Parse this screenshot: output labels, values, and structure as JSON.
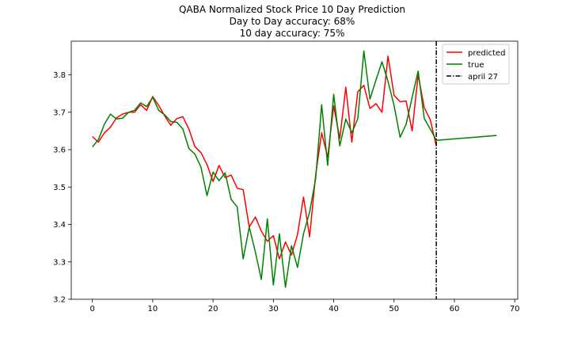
{
  "chart_data": {
    "type": "line",
    "title_lines": [
      "QABA Normalized Stock Price 10 Day Prediction",
      "Day to Day accuracy: 68%",
      "10 day accuracy: 75%"
    ],
    "xlabel": "",
    "ylabel": "",
    "xlim": [
      -3.5,
      70.5
    ],
    "ylim": [
      3.2,
      3.89
    ],
    "xticks": [
      0,
      10,
      20,
      30,
      40,
      50,
      60,
      70
    ],
    "yticks": [
      3.2,
      3.3,
      3.4,
      3.5,
      3.6,
      3.7,
      3.8
    ],
    "grid": false,
    "legend_position": "top-right",
    "series": [
      {
        "name": "predicted",
        "color": "#ff0000",
        "style": "solid",
        "x": [
          0,
          1,
          2,
          3,
          4,
          5,
          6,
          7,
          8,
          9,
          10,
          11,
          12,
          13,
          14,
          15,
          16,
          17,
          18,
          19,
          20,
          21,
          22,
          23,
          24,
          25,
          26,
          27,
          28,
          29,
          30,
          31,
          32,
          33,
          34,
          35,
          36,
          37,
          38,
          39,
          40,
          41,
          42,
          43,
          44,
          45,
          46,
          47,
          48,
          49,
          50,
          51,
          52,
          53,
          54,
          55,
          56,
          57
        ],
        "values": [
          3.635,
          3.62,
          3.645,
          3.66,
          3.685,
          3.695,
          3.7,
          3.7,
          3.72,
          3.705,
          3.742,
          3.718,
          3.69,
          3.665,
          3.683,
          3.688,
          3.655,
          3.608,
          3.592,
          3.56,
          3.515,
          3.558,
          3.525,
          3.532,
          3.497,
          3.493,
          3.393,
          3.42,
          3.382,
          3.355,
          3.37,
          3.308,
          3.353,
          3.318,
          3.373,
          3.473,
          3.367,
          3.532,
          3.645,
          3.58,
          3.717,
          3.63,
          3.767,
          3.62,
          3.755,
          3.772,
          3.71,
          3.723,
          3.7,
          3.85,
          3.745,
          3.728,
          3.73,
          3.65,
          3.8,
          3.712,
          3.68,
          3.61
        ]
      },
      {
        "name": "true",
        "color": "#008000",
        "style": "solid",
        "x": [
          0,
          1,
          2,
          3,
          4,
          5,
          6,
          7,
          8,
          9,
          10,
          11,
          12,
          13,
          14,
          15,
          16,
          17,
          18,
          19,
          20,
          21,
          22,
          23,
          24,
          25,
          26,
          27,
          28,
          29,
          30,
          31,
          32,
          33,
          34,
          35,
          36,
          37,
          38,
          39,
          40,
          41,
          42,
          43,
          44,
          45,
          46,
          47,
          48,
          49,
          50,
          51,
          52,
          53,
          54,
          55,
          56,
          57,
          67
        ],
        "values": [
          3.607,
          3.627,
          3.668,
          3.695,
          3.682,
          3.684,
          3.7,
          3.705,
          3.725,
          3.715,
          3.74,
          3.705,
          3.693,
          3.675,
          3.673,
          3.655,
          3.603,
          3.588,
          3.553,
          3.477,
          3.54,
          3.517,
          3.538,
          3.467,
          3.447,
          3.308,
          3.393,
          3.327,
          3.253,
          3.415,
          3.238,
          3.375,
          3.232,
          3.343,
          3.285,
          3.375,
          3.433,
          3.522,
          3.72,
          3.558,
          3.748,
          3.61,
          3.682,
          3.645,
          3.683,
          3.864,
          3.735,
          3.786,
          3.835,
          3.783,
          3.718,
          3.633,
          3.668,
          3.74,
          3.81,
          3.683,
          3.655,
          3.625,
          3.638
        ]
      },
      {
        "name": "april 27",
        "color": "#000000",
        "style": "dashdot",
        "type": "vline",
        "x": 57
      }
    ]
  }
}
